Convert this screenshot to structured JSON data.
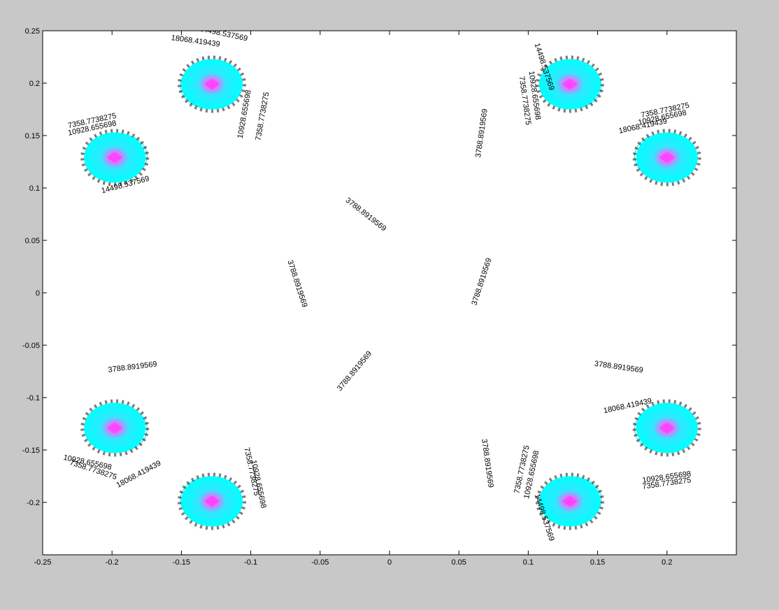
{
  "window": {
    "background": "#c8c8c8"
  },
  "chart_data": {
    "type": "contour",
    "title": "",
    "xlabel": "",
    "ylabel": "",
    "xlim": [
      -0.25,
      0.25
    ],
    "ylim": [
      -0.25,
      0.25
    ],
    "grid": false,
    "x_ticks": [
      -0.25,
      -0.2,
      -0.15,
      -0.1,
      -0.05,
      0,
      0.05,
      0.1,
      0.15,
      0.2
    ],
    "x_tick_labels": [
      "-0.25",
      "-0.2",
      "-0.15",
      "-0.1",
      "-0.05",
      "0",
      "0.05",
      "0.1",
      "0.15",
      "0.2"
    ],
    "y_ticks": [
      0.25,
      0.2,
      0.15,
      0.1,
      0.05,
      0,
      -0.05,
      -0.1,
      -0.15,
      -0.2
    ],
    "y_tick_labels": [
      "0.25",
      "0.2",
      "0.15",
      "0.1",
      "0.05",
      "0",
      "-0.05",
      "-0.1",
      "-0.15",
      "-0.2"
    ],
    "colors": {
      "contour": "#00e5e5",
      "peak": "#ff44ff",
      "background": "#ffffff",
      "axis": "#000000"
    },
    "sources": [
      {
        "x": -0.198,
        "y": 0.129
      },
      {
        "x": -0.128,
        "y": 0.199
      },
      {
        "x": 0.13,
        "y": 0.199
      },
      {
        "x": 0.2,
        "y": 0.129
      },
      {
        "x": -0.198,
        "y": -0.129
      },
      {
        "x": -0.128,
        "y": -0.199
      },
      {
        "x": 0.13,
        "y": -0.199
      },
      {
        "x": 0.2,
        "y": -0.129
      }
    ],
    "contour_levels": [
      3788.8919569,
      7358.7738275,
      10928.655698,
      14498.537569
    ],
    "contour_labels": [
      {
        "text": "3788.8919569",
        "x": -0.018,
        "y": 0.073,
        "angle": 38
      },
      {
        "text": "3788.8919569",
        "x": -0.068,
        "y": 0.008,
        "angle": 72
      },
      {
        "text": "3788.8919569",
        "x": -0.024,
        "y": -0.076,
        "angle": -50
      },
      {
        "text": "3788.8919569",
        "x": -0.185,
        "y": -0.073,
        "angle": -7
      },
      {
        "text": "3788.8919569",
        "x": 0.068,
        "y": 0.152,
        "angle": -82
      },
      {
        "text": "3788.8919569",
        "x": 0.068,
        "y": 0.01,
        "angle": -72
      },
      {
        "text": "3788.8919569",
        "x": 0.069,
        "y": -0.163,
        "angle": 82
      },
      {
        "text": "3788.8919569",
        "x": 0.165,
        "y": -0.073,
        "angle": 8
      },
      {
        "text": "7358.7738275",
        "x": -0.214,
        "y": 0.162,
        "angle": -12
      },
      {
        "text": "10928.655698",
        "x": -0.214,
        "y": 0.155,
        "angle": -12
      },
      {
        "text": "10928.655698",
        "x": -0.103,
        "y": 0.17,
        "angle": -80
      },
      {
        "text": "7358.7738275",
        "x": -0.09,
        "y": 0.168,
        "angle": -80
      },
      {
        "text": "14498.537569",
        "x": -0.12,
        "y": 0.245,
        "angle": 12
      },
      {
        "text": "18068.419439",
        "x": -0.14,
        "y": 0.238,
        "angle": 8
      },
      {
        "text": "14498.537569",
        "x": -0.19,
        "y": 0.101,
        "angle": -15
      },
      {
        "text": "7358.7738275",
        "x": 0.096,
        "y": 0.183,
        "angle": 82
      },
      {
        "text": "10928.655698",
        "x": 0.103,
        "y": 0.188,
        "angle": 82
      },
      {
        "text": "14498.537569",
        "x": 0.11,
        "y": 0.215,
        "angle": 72
      },
      {
        "text": "7358.7738275",
        "x": 0.199,
        "y": 0.172,
        "angle": -12
      },
      {
        "text": "10928.655698",
        "x": 0.197,
        "y": 0.165,
        "angle": -12
      },
      {
        "text": "18068.419439",
        "x": 0.183,
        "y": 0.157,
        "angle": -12
      },
      {
        "text": "10928.655698",
        "x": -0.218,
        "y": -0.164,
        "angle": 12
      },
      {
        "text": "7358.7738275",
        "x": -0.214,
        "y": -0.171,
        "angle": 18
      },
      {
        "text": "18068.419439",
        "x": -0.18,
        "y": -0.175,
        "angle": -28
      },
      {
        "text": "7358.7738275",
        "x": -0.101,
        "y": -0.171,
        "angle": 78
      },
      {
        "text": "10928.655698",
        "x": -0.096,
        "y": -0.183,
        "angle": 78
      },
      {
        "text": "7358.7738275",
        "x": 0.097,
        "y": -0.169,
        "angle": -78
      },
      {
        "text": "10928.655698",
        "x": 0.104,
        "y": -0.174,
        "angle": -78
      },
      {
        "text": "14498.537569",
        "x": 0.11,
        "y": -0.215,
        "angle": 72
      },
      {
        "text": "10928.655698",
        "x": 0.2,
        "y": -0.178,
        "angle": -8
      },
      {
        "text": "7358.7738275",
        "x": 0.2,
        "y": -0.184,
        "angle": -8
      },
      {
        "text": "18068.419439",
        "x": 0.172,
        "y": -0.11,
        "angle": -12
      }
    ]
  }
}
